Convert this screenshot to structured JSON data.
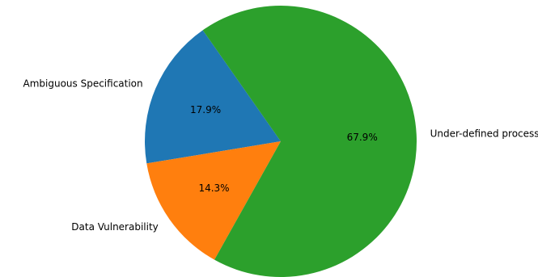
{
  "chart_data": {
    "type": "pie",
    "categories": [
      "Ambiguous Specification",
      "Data Vulnerability",
      "Under-defined process"
    ],
    "values": [
      17.9,
      14.3,
      67.9
    ],
    "labels": [
      "17.9%",
      "14.3%",
      "67.9%"
    ],
    "colors": [
      "#1f77b4",
      "#ff7f0e",
      "#2ca02c"
    ],
    "legend": "none"
  }
}
